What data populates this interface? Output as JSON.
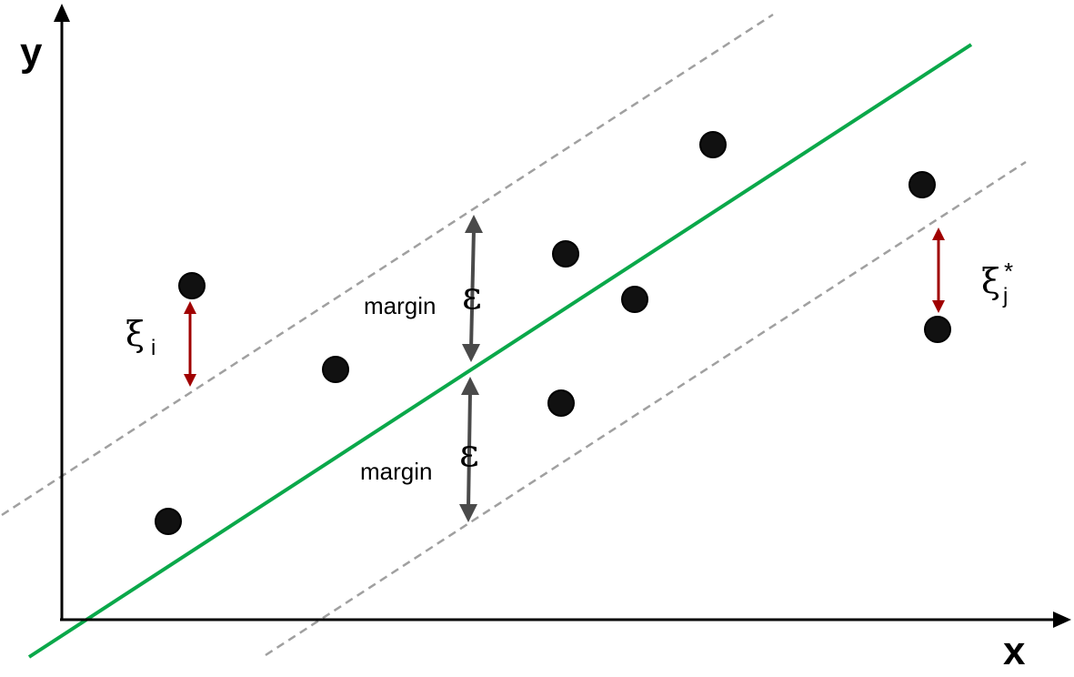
{
  "axes": {
    "x_label": "x",
    "y_label": "y"
  },
  "annotations": {
    "upper_margin": {
      "label": "margin",
      "symbol": "ε"
    },
    "lower_margin": {
      "label": "margin",
      "symbol": "ε"
    },
    "slack_i": {
      "symbol": "ξ",
      "subscript": "i"
    },
    "slack_j": {
      "symbol": "ξ",
      "subscript": "j",
      "superscript": "*"
    }
  },
  "colors": {
    "regression_line": "#0aa84a",
    "margin_lines": "#a0a0a0",
    "points": "#111111",
    "margin_arrows": "#4a4a4a",
    "slack_arrows": "#a00000",
    "axes": "#000000"
  }
}
